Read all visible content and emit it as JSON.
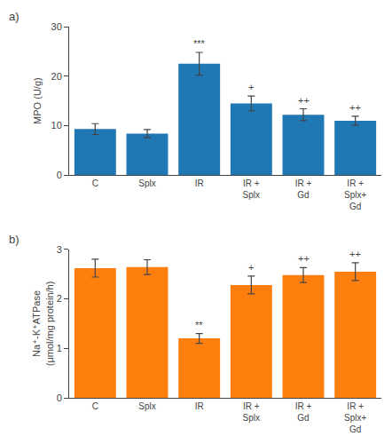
{
  "chart_data": [
    {
      "type": "bar",
      "title": "a)",
      "y_label": "MPO (U/g)",
      "categories": [
        "C",
        "Splx",
        "IR",
        "IR +\nSplx",
        "IR +\nGd",
        "IR +\nSplx+\nGd"
      ],
      "values": [
        9.3,
        8.4,
        22.5,
        14.5,
        12.2,
        11.0
      ],
      "errors": [
        1.1,
        0.8,
        2.3,
        1.5,
        1.2,
        0.9
      ],
      "annotations": [
        {
          "category": "IR",
          "text": "***"
        },
        {
          "category": "IR +\nSplx",
          "text": "+"
        },
        {
          "category": "IR +\nGd",
          "text": "++"
        },
        {
          "category": "IR +\nSplx+\nGd",
          "text": "++"
        }
      ],
      "ylim": [
        0,
        30
      ],
      "yticks": [
        0,
        10,
        20,
        30
      ],
      "grid": false
    },
    {
      "type": "bar",
      "title": "b)",
      "y_label": "Na⁺-K⁺ATPase\n(μmol/mg protein/h)",
      "categories": [
        "C",
        "Splx",
        "IR",
        "IR +\nSplx",
        "IR +\nGd",
        "IR +\nSplx+\nGd"
      ],
      "values": [
        2.62,
        2.64,
        1.2,
        2.28,
        2.48,
        2.55
      ],
      "errors": [
        0.18,
        0.15,
        0.1,
        0.18,
        0.15,
        0.18
      ],
      "annotations": [
        {
          "category": "IR",
          "text": "**"
        },
        {
          "category": "IR +\nSplx",
          "text": "+"
        },
        {
          "category": "IR +\nGd",
          "text": "++"
        },
        {
          "category": "IR +\nSplx+\nGd",
          "text": "++"
        }
      ],
      "ylim": [
        0,
        3
      ],
      "yticks": [
        0,
        1,
        2,
        3
      ],
      "grid": false
    }
  ]
}
